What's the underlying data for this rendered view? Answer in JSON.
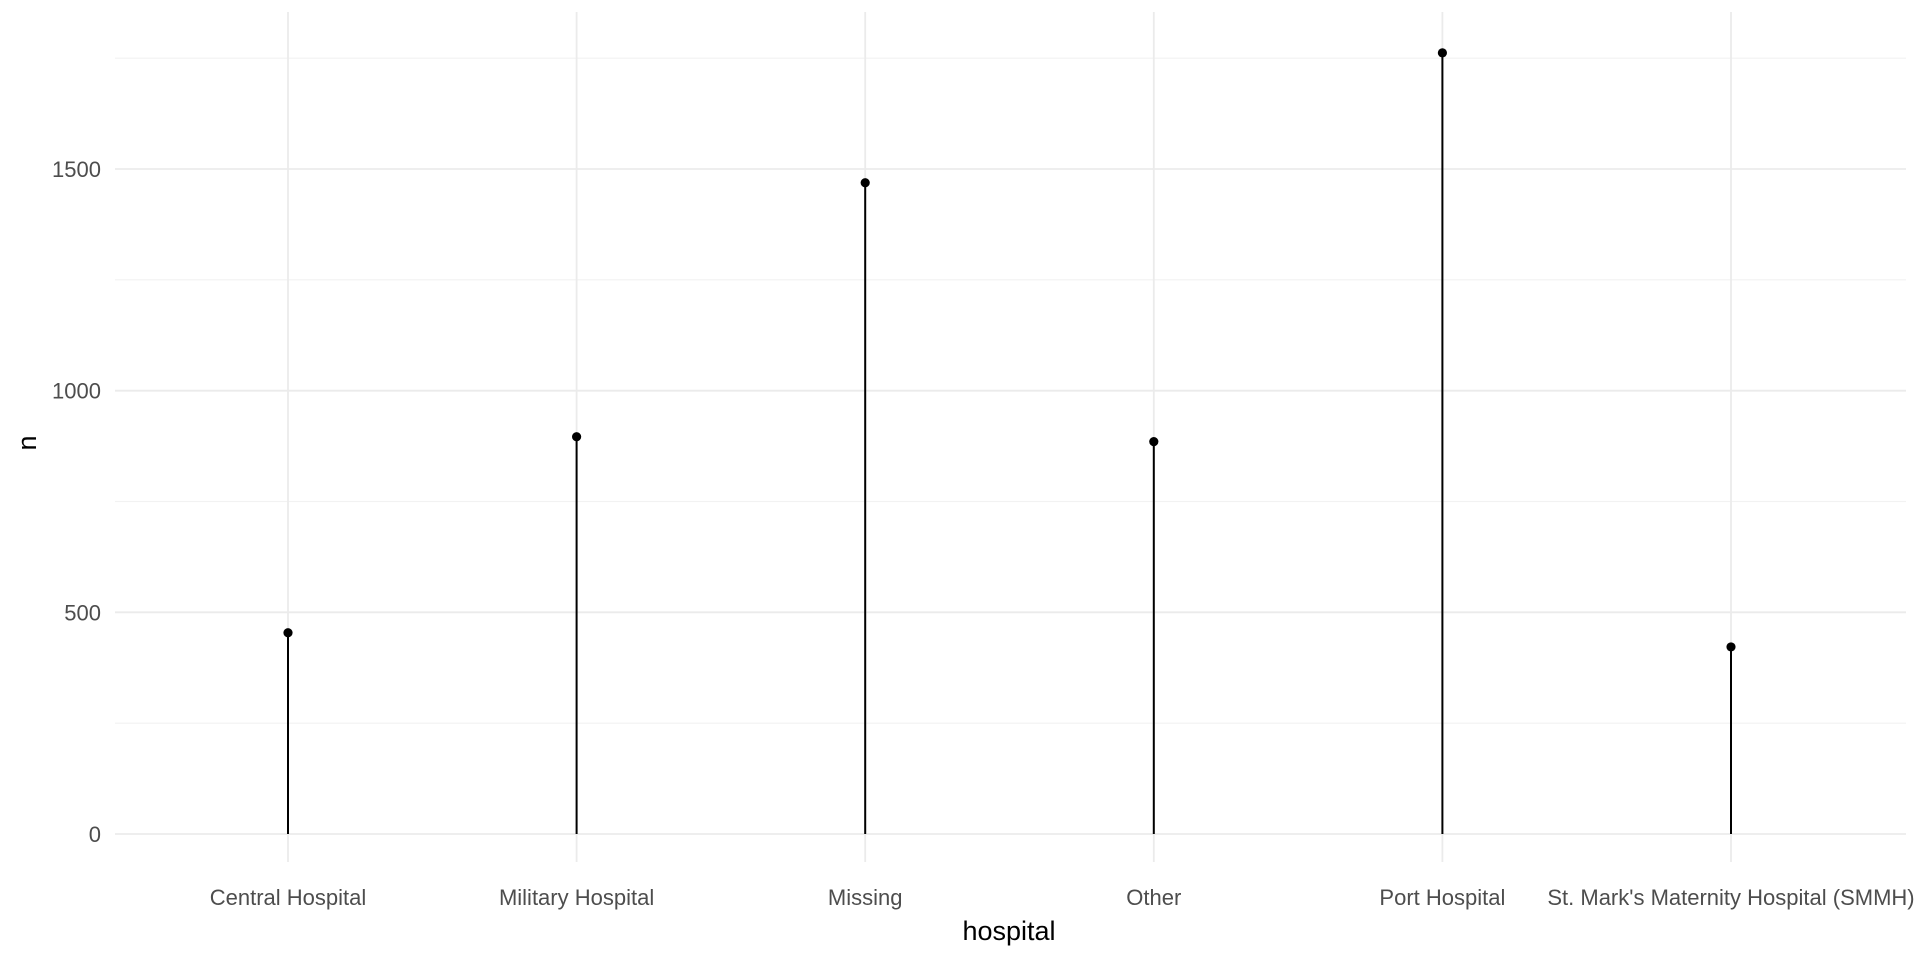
{
  "chart_data": {
    "type": "lollipop",
    "title": "",
    "xlabel": "hospital",
    "ylabel": "n",
    "categories": [
      "Central Hospital",
      "Military Hospital",
      "Missing",
      "Other",
      "Port Hospital",
      "St. Mark's Maternity Hospital (SMMH)"
    ],
    "values": [
      454,
      896,
      1469,
      885,
      1762,
      422
    ],
    "ylim": [
      0,
      1750
    ],
    "y_ticks": [
      0,
      500,
      1000,
      1500
    ],
    "y_tick_labels": [
      "0",
      "500",
      "1000",
      "1500"
    ],
    "grid": true,
    "legend": "none",
    "colors": {
      "mark": "#000000",
      "grid": "#ebebeb",
      "tick_text": "#4d4d4d"
    }
  }
}
